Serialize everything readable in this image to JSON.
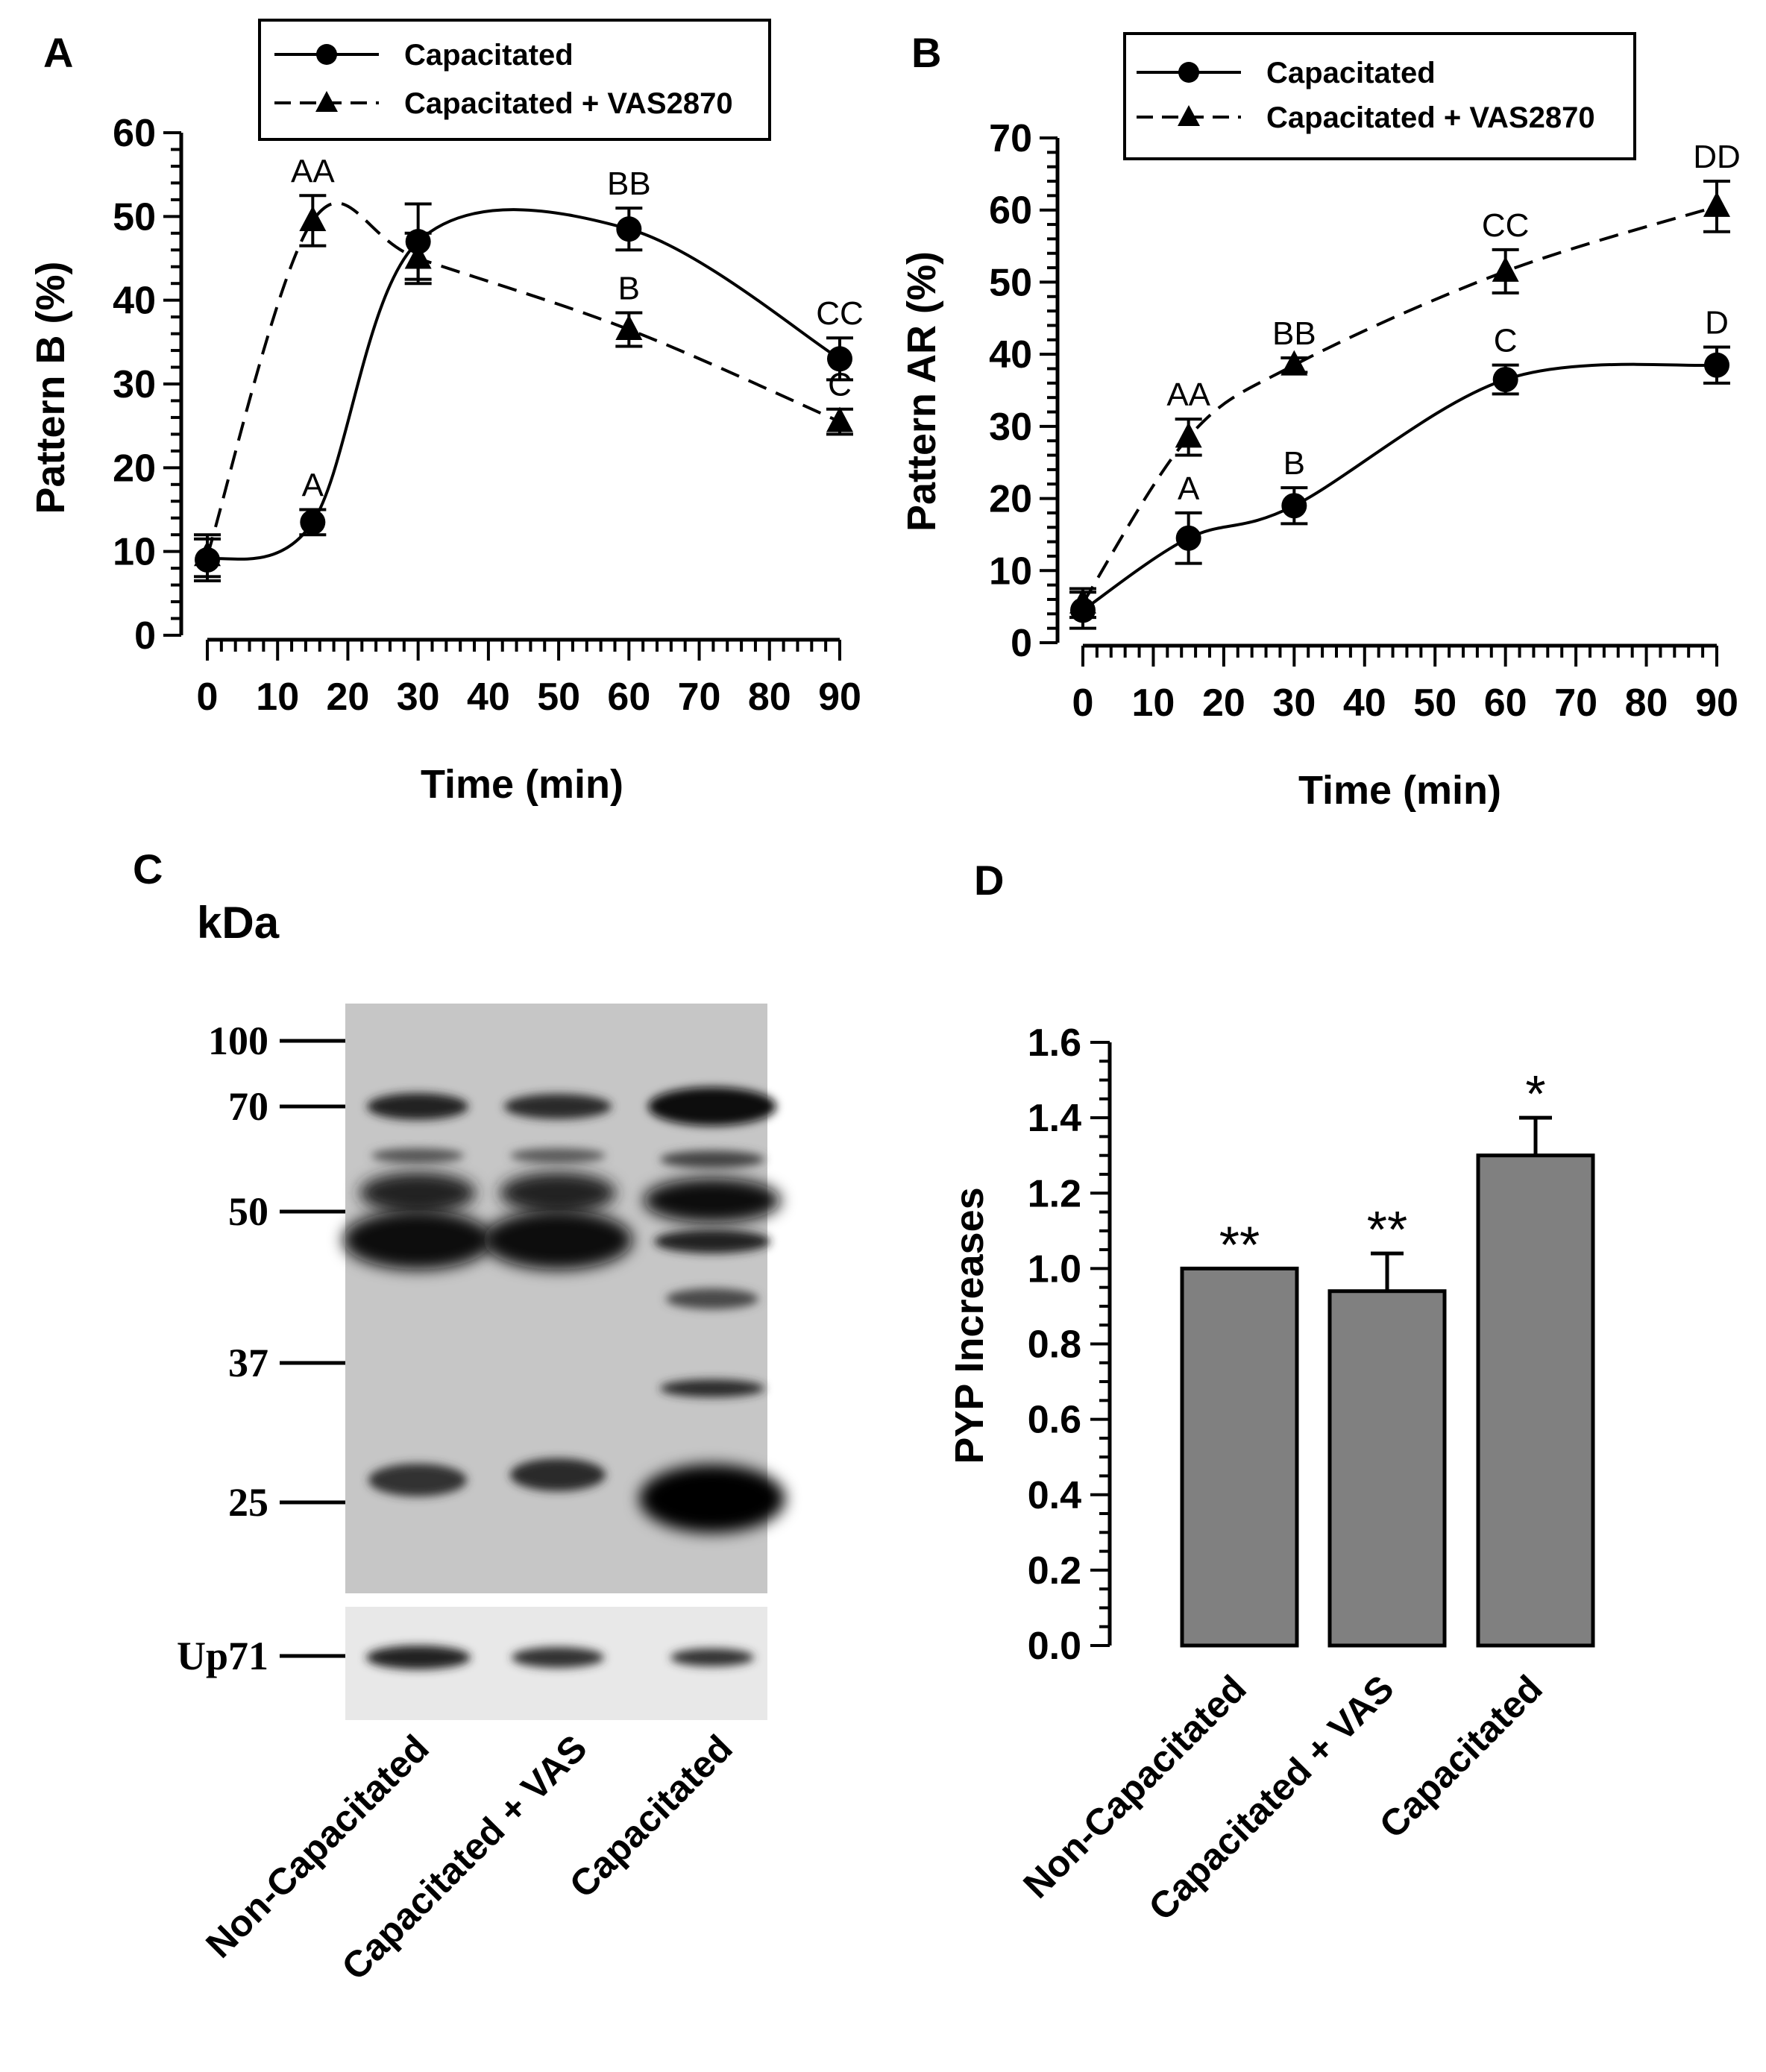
{
  "chart_data": [
    {
      "panel": "A",
      "type": "line",
      "xlabel": "Time (min)",
      "ylabel": "Pattern B (%)",
      "xlim": [
        0,
        90
      ],
      "ylim": [
        0,
        60
      ],
      "x_ticks": [
        "0",
        "10",
        "20",
        "30",
        "40",
        "50",
        "60",
        "70",
        "80",
        "90"
      ],
      "y_ticks": [
        "0",
        "10",
        "20",
        "30",
        "40",
        "50",
        "60"
      ],
      "legend": {
        "placement": "top",
        "entries": [
          "Capacitated",
          "Capacitated + VAS2870"
        ]
      },
      "series": [
        {
          "name": "Capacitated",
          "marker": "circle",
          "line": "solid",
          "x": [
            0,
            15,
            30,
            60,
            90
          ],
          "y": [
            9,
            13.5,
            47,
            48.5,
            33
          ],
          "err": [
            2.5,
            1.5,
            4.5,
            2.5,
            2.5
          ],
          "labels": [
            "",
            "A",
            "",
            "BB",
            "CC"
          ]
        },
        {
          "name": "Capacitated + VAS2870",
          "marker": "triangle",
          "line": "dashed",
          "x": [
            0,
            15,
            30,
            60,
            90
          ],
          "y": [
            9.5,
            49.5,
            45,
            36.5,
            25.5
          ],
          "err": [
            2.5,
            3,
            3,
            2,
            1.5
          ],
          "labels": [
            "",
            "AA",
            "",
            "B",
            "C"
          ]
        }
      ]
    },
    {
      "panel": "B",
      "type": "line",
      "xlabel": "Time (min)",
      "ylabel": "Pattern AR (%)",
      "xlim": [
        0,
        90
      ],
      "ylim": [
        0,
        70
      ],
      "x_ticks": [
        "0",
        "10",
        "20",
        "30",
        "40",
        "50",
        "60",
        "70",
        "80",
        "90"
      ],
      "y_ticks": [
        "0",
        "10",
        "20",
        "30",
        "40",
        "50",
        "60",
        "70"
      ],
      "legend": {
        "placement": "top-right",
        "entries": [
          "Capacitated",
          "Capacitated + VAS2870"
        ]
      },
      "series": [
        {
          "name": "Capacitated",
          "marker": "circle",
          "line": "solid",
          "x": [
            0,
            15,
            30,
            60,
            90
          ],
          "y": [
            4.5,
            14.5,
            19,
            36.5,
            38.5
          ],
          "err": [
            2.5,
            3.5,
            2.5,
            2,
            2.5
          ],
          "labels": [
            "",
            "A",
            "B",
            "C",
            "D"
          ]
        },
        {
          "name": "Capacitated + VAS2870",
          "marker": "triangle",
          "line": "dashed",
          "x": [
            0,
            15,
            30,
            60,
            90
          ],
          "y": [
            5.5,
            28.5,
            38.5,
            51.5,
            60.5
          ],
          "err": [
            2,
            2.5,
            1,
            3,
            3.5
          ],
          "labels": [
            "",
            "AA",
            "BB",
            "CC",
            "DD"
          ]
        }
      ]
    },
    {
      "panel": "C",
      "type": "blot",
      "unit_label": "kDa",
      "markers": [
        "100",
        "70",
        "50",
        "37",
        "25"
      ],
      "loading_control": "Up71",
      "lanes": [
        "Non-Capacitated",
        "Capacitated + VAS",
        "Capacitated"
      ]
    },
    {
      "panel": "D",
      "type": "bar",
      "ylabel": "PYP Increases",
      "ylim": [
        0,
        1.6
      ],
      "y_ticks": [
        "0.0",
        "0.2",
        "0.4",
        "0.6",
        "0.8",
        "1.0",
        "1.2",
        "1.4",
        "1.6"
      ],
      "categories": [
        "Non-Capacitated",
        "Capacitated + VAS",
        "Capacitated"
      ],
      "values": [
        1.0,
        0.94,
        1.3
      ],
      "errors": [
        0,
        0.1,
        0.1
      ],
      "significance": [
        "**",
        "**",
        "*"
      ],
      "color": "#808080"
    }
  ],
  "panel_letters": {
    "a": "A",
    "b": "B",
    "c": "C",
    "d": "D"
  }
}
